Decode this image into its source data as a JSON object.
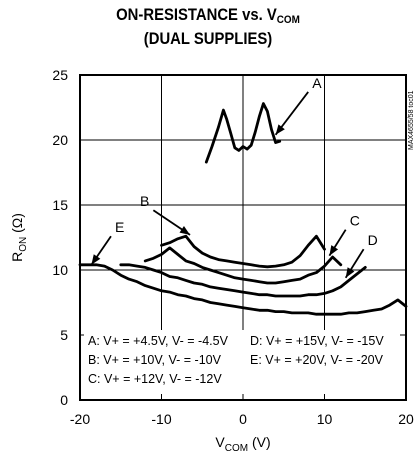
{
  "title_line1_main": "ON-RESISTANCE vs. V",
  "title_line1_sub": "COM",
  "title_line2": "(DUAL SUPPLIES)",
  "watermark": "MAX4655/58 toc01",
  "chart_data": {
    "type": "line",
    "xlabel_main": "V",
    "xlabel_sub": "COM",
    "xlabel_unit": " (V)",
    "ylabel_main": "R",
    "ylabel_sub": "ON",
    "ylabel_unit": " (Ω)",
    "xlim": [
      -20,
      20
    ],
    "ylim": [
      0,
      25
    ],
    "x_ticks": [
      "-20",
      "-10",
      "0",
      "10",
      "20"
    ],
    "y_ticks": [
      "0",
      "5",
      "10",
      "15",
      "20",
      "25"
    ],
    "grid": true,
    "series": [
      {
        "name": "A",
        "label": "A: V+ = +4.5V, V- = -4.5V",
        "x": [
          -4.5,
          -3.8,
          -3.0,
          -2.4,
          -2.0,
          -1.5,
          -1.0,
          -0.5,
          0.0,
          0.5,
          1.0,
          1.5,
          2.0,
          2.5,
          3.0,
          3.5,
          4.0,
          4.5
        ],
        "y": [
          18.3,
          19.5,
          21.0,
          22.3,
          21.6,
          20.5,
          19.4,
          19.2,
          19.5,
          19.3,
          19.6,
          20.6,
          21.8,
          22.8,
          22.2,
          20.8,
          19.8,
          19.9
        ]
      },
      {
        "name": "B",
        "label": "B: V+ = +10V, V- = -10V",
        "x": [
          -10,
          -9,
          -8,
          -7,
          -6,
          -5,
          -4,
          -3,
          -2,
          -1,
          0,
          1,
          2,
          3,
          4,
          5,
          6,
          7,
          8,
          9,
          10
        ],
        "y": [
          11.9,
          12.1,
          12.4,
          12.6,
          11.8,
          11.3,
          11.0,
          10.8,
          10.7,
          10.6,
          10.5,
          10.4,
          10.3,
          10.25,
          10.3,
          10.4,
          10.6,
          11.1,
          11.9,
          12.6,
          11.6
        ]
      },
      {
        "name": "C",
        "label": "C: V+ = +12V, V- = -12V",
        "x": [
          -12,
          -11,
          -10,
          -9,
          -8,
          -7,
          -6,
          -5,
          -4,
          -3,
          -2,
          -1,
          0,
          1,
          2,
          3,
          4,
          5,
          6,
          7,
          8,
          9,
          10,
          11,
          12
        ],
        "y": [
          10.7,
          10.9,
          11.2,
          11.7,
          11.2,
          10.7,
          10.5,
          10.2,
          10.0,
          9.8,
          9.6,
          9.4,
          9.3,
          9.2,
          9.1,
          9.0,
          9.0,
          9.1,
          9.2,
          9.3,
          9.6,
          9.8,
          10.3,
          11.0,
          10.4
        ]
      },
      {
        "name": "D",
        "label": "D: V+ = +15V, V- = -15V",
        "x": [
          -15,
          -14,
          -13,
          -12,
          -11,
          -10,
          -9,
          -8,
          -7,
          -6,
          -5,
          -4,
          -3,
          -2,
          -1,
          0,
          1,
          2,
          3,
          4,
          5,
          6,
          7,
          8,
          9,
          10,
          11,
          12,
          13,
          14,
          15
        ],
        "y": [
          10.4,
          10.4,
          10.3,
          10.2,
          10.0,
          9.8,
          9.5,
          9.4,
          9.2,
          9.0,
          8.9,
          8.7,
          8.6,
          8.5,
          8.4,
          8.3,
          8.2,
          8.1,
          8.1,
          8.0,
          8.0,
          8.0,
          8.0,
          8.1,
          8.1,
          8.2,
          8.4,
          8.7,
          9.2,
          9.7,
          10.2
        ]
      },
      {
        "name": "E",
        "label": "E: V+ = +20V, V- = -20V",
        "x": [
          -20,
          -19,
          -18,
          -17,
          -16,
          -15,
          -14,
          -13,
          -12,
          -11,
          -10,
          -9,
          -8,
          -7,
          -6,
          -5,
          -4,
          -3,
          -2,
          -1,
          0,
          1,
          2,
          3,
          4,
          5,
          6,
          7,
          8,
          9,
          10,
          11,
          12,
          13,
          14,
          15,
          16,
          17,
          18,
          19,
          20
        ],
        "y": [
          10.4,
          10.4,
          10.4,
          10.3,
          10.0,
          9.6,
          9.3,
          9.1,
          8.8,
          8.6,
          8.4,
          8.3,
          8.1,
          8.0,
          7.8,
          7.7,
          7.5,
          7.4,
          7.3,
          7.2,
          7.1,
          7.0,
          6.9,
          6.9,
          6.8,
          6.8,
          6.7,
          6.7,
          6.7,
          6.6,
          6.6,
          6.6,
          6.6,
          6.7,
          6.7,
          6.8,
          6.9,
          7.0,
          7.3,
          7.7,
          7.2
        ]
      }
    ]
  }
}
